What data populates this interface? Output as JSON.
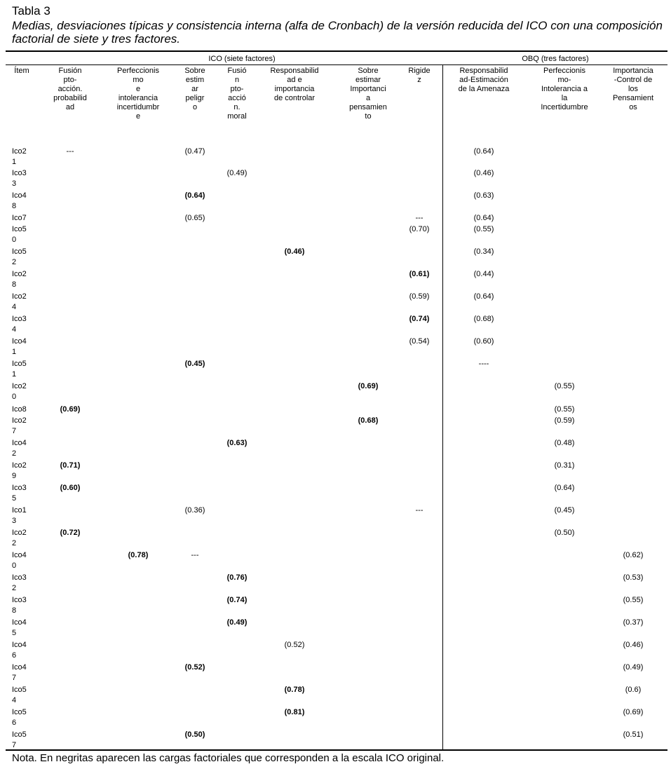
{
  "caption": {
    "title": "Tabla 3",
    "subtitle": "Medias, desviaciones típicas y consistencia interna (alfa de Cronbach) de la versión reducida del ICO con una composición factorial de siete y tres factores."
  },
  "groups": {
    "ico": "ICO (siete factores)",
    "obq": "OBQ (tres factores)"
  },
  "headers": [
    "Ítem",
    "Fusión\npto-\nacción.\nprobabilid\nad",
    "Perfeccionis\nmo\ne\nintolerancia\nincertidumbr\ne",
    "Sobre\nestim\nar\npeligr\no",
    "Fusió\nn\npto-\nacció\nn.\nmoral",
    "Responsabilid\nad e\nimportancia\nde controlar",
    "Sobre\nestimar\nImportanci\na\npensamien\nto",
    "Rigide\nz",
    "Responsabilid\nad-Estimación\nde la Amenaza",
    "Perfeccionis\nmo-\nIntolerancia a\nla\nIncertidumbre",
    "Importancia\n-Control de\nlos\nPensamient\nos"
  ],
  "rows": [
    {
      "item": "Ico2\n1",
      "cells": [
        "---",
        "",
        "(0.47)",
        "",
        "",
        "",
        "",
        "(0.64)",
        "",
        ""
      ],
      "bold": [
        false,
        false,
        false,
        false,
        false,
        false,
        false,
        false,
        false,
        false
      ]
    },
    {
      "item": "Ico3\n3",
      "cells": [
        "",
        "",
        "",
        "(0.49)",
        "",
        "",
        "",
        "(0.46)",
        "",
        ""
      ],
      "bold": [
        false,
        false,
        false,
        false,
        false,
        false,
        false,
        false,
        false,
        false
      ]
    },
    {
      "item": "Ico4\n8",
      "cells": [
        "",
        "",
        "(0.64)",
        "",
        "",
        "",
        "",
        "(0.63)",
        "",
        ""
      ],
      "bold": [
        false,
        false,
        true,
        false,
        false,
        false,
        false,
        false,
        false,
        false
      ]
    },
    {
      "item": "Ico7",
      "cells": [
        "",
        "",
        "(0.65)",
        "",
        "",
        "",
        "---",
        "(0.64)",
        "",
        ""
      ],
      "bold": [
        false,
        false,
        false,
        false,
        false,
        false,
        false,
        false,
        false,
        false
      ]
    },
    {
      "item": "Ico5\n0",
      "cells": [
        "",
        "",
        "",
        "",
        "",
        "",
        "(0.70)",
        "(0.55)",
        "",
        ""
      ],
      "bold": [
        false,
        false,
        false,
        false,
        false,
        false,
        false,
        false,
        false,
        false
      ]
    },
    {
      "item": "Ico5\n2",
      "cells": [
        "",
        "",
        "",
        "",
        "(0.46)",
        "",
        "",
        "(0.34)",
        "",
        ""
      ],
      "bold": [
        false,
        false,
        false,
        false,
        true,
        false,
        false,
        false,
        false,
        false
      ]
    },
    {
      "item": "Ico2\n8",
      "cells": [
        "",
        "",
        "",
        "",
        "",
        "",
        "(0.61)",
        "(0.44)",
        "",
        ""
      ],
      "bold": [
        false,
        false,
        false,
        false,
        false,
        false,
        true,
        false,
        false,
        false
      ]
    },
    {
      "item": "Ico2\n4",
      "cells": [
        "",
        "",
        "",
        "",
        "",
        "",
        "(0.59)",
        "(0.64)",
        "",
        ""
      ],
      "bold": [
        false,
        false,
        false,
        false,
        false,
        false,
        false,
        false,
        false,
        false
      ]
    },
    {
      "item": "Ico3\n4",
      "cells": [
        "",
        "",
        "",
        "",
        "",
        "",
        "(0.74)",
        "(0.68)",
        "",
        ""
      ],
      "bold": [
        false,
        false,
        false,
        false,
        false,
        false,
        true,
        false,
        false,
        false
      ]
    },
    {
      "item": "Ico4\n1",
      "cells": [
        "",
        "",
        "",
        "",
        "",
        "",
        "(0.54)",
        "(0.60)",
        "",
        ""
      ],
      "bold": [
        false,
        false,
        false,
        false,
        false,
        false,
        false,
        false,
        false,
        false
      ]
    },
    {
      "item": "Ico5\n1",
      "cells": [
        "",
        "",
        "(0.45)",
        "",
        "",
        "",
        "",
        "----",
        "",
        ""
      ],
      "bold": [
        false,
        false,
        true,
        false,
        false,
        false,
        false,
        false,
        false,
        false
      ]
    },
    {
      "item": "Ico2\n0",
      "cells": [
        "",
        "",
        "",
        "",
        "",
        "(0.69)",
        "",
        "",
        "(0.55)",
        ""
      ],
      "bold": [
        false,
        false,
        false,
        false,
        false,
        true,
        false,
        false,
        false,
        false
      ]
    },
    {
      "item": "Ico8",
      "cells": [
        "(0.69)",
        "",
        "",
        "",
        "",
        "",
        "",
        "",
        "(0.55)",
        ""
      ],
      "bold": [
        true,
        false,
        false,
        false,
        false,
        false,
        false,
        false,
        false,
        false
      ]
    },
    {
      "item": "Ico2\n7",
      "cells": [
        "",
        "",
        "",
        "",
        "",
        "(0.68)",
        "",
        "",
        "(0.59)",
        ""
      ],
      "bold": [
        false,
        false,
        false,
        false,
        false,
        true,
        false,
        false,
        false,
        false
      ]
    },
    {
      "item": "Ico4\n2",
      "cells": [
        "",
        "",
        "",
        "(0.63)",
        "",
        "",
        "",
        "",
        "(0.48)",
        ""
      ],
      "bold": [
        false,
        false,
        false,
        true,
        false,
        false,
        false,
        false,
        false,
        false
      ]
    },
    {
      "item": "Ico2\n9",
      "cells": [
        "(0.71)",
        "",
        "",
        "",
        "",
        "",
        "",
        "",
        "(0.31)",
        ""
      ],
      "bold": [
        true,
        false,
        false,
        false,
        false,
        false,
        false,
        false,
        false,
        false
      ]
    },
    {
      "item": "Ico3\n5",
      "cells": [
        "(0.60)",
        "",
        "",
        "",
        "",
        "",
        "",
        "",
        "(0.64)",
        ""
      ],
      "bold": [
        true,
        false,
        false,
        false,
        false,
        false,
        false,
        false,
        false,
        false
      ]
    },
    {
      "item": "Ico1\n3",
      "cells": [
        "",
        "",
        "(0.36)",
        "",
        "",
        "",
        "---",
        "",
        "(0.45)",
        ""
      ],
      "bold": [
        false,
        false,
        false,
        false,
        false,
        false,
        false,
        false,
        false,
        false
      ]
    },
    {
      "item": "Ico2\n2",
      "cells": [
        "(0.72)",
        "",
        "",
        "",
        "",
        "",
        "",
        "",
        "(0.50)",
        ""
      ],
      "bold": [
        true,
        false,
        false,
        false,
        false,
        false,
        false,
        false,
        false,
        false
      ]
    },
    {
      "item": "Ico4\n0",
      "cells": [
        "",
        "(0.78)",
        "---",
        "",
        "",
        "",
        "",
        "",
        "",
        "(0.62)"
      ],
      "bold": [
        false,
        true,
        false,
        false,
        false,
        false,
        false,
        false,
        false,
        false
      ]
    },
    {
      "item": "Ico3\n2",
      "cells": [
        "",
        "",
        "",
        "(0.76)",
        "",
        "",
        "",
        "",
        "",
        "(0.53)"
      ],
      "bold": [
        false,
        false,
        false,
        true,
        false,
        false,
        false,
        false,
        false,
        false
      ]
    },
    {
      "item": "Ico3\n8",
      "cells": [
        "",
        "",
        "",
        "(0.74)",
        "",
        "",
        "",
        "",
        "",
        "(0.55)"
      ],
      "bold": [
        false,
        false,
        false,
        true,
        false,
        false,
        false,
        false,
        false,
        false
      ]
    },
    {
      "item": "Ico4\n5",
      "cells": [
        "",
        "",
        "",
        "(0.49)",
        "",
        "",
        "",
        "",
        "",
        "(0.37)"
      ],
      "bold": [
        false,
        false,
        false,
        true,
        false,
        false,
        false,
        false,
        false,
        false
      ]
    },
    {
      "item": "Ico4\n6",
      "cells": [
        "",
        "",
        "",
        "",
        "(0.52)",
        "",
        "",
        "",
        "",
        "(0.46)"
      ],
      "bold": [
        false,
        false,
        false,
        false,
        false,
        false,
        false,
        false,
        false,
        false
      ]
    },
    {
      "item": "Ico4\n7",
      "cells": [
        "",
        "",
        "(0.52)",
        "",
        "",
        "",
        "",
        "",
        "",
        "(0.49)"
      ],
      "bold": [
        false,
        false,
        true,
        false,
        false,
        false,
        false,
        false,
        false,
        false
      ]
    },
    {
      "item": "Ico5\n4",
      "cells": [
        "",
        "",
        "",
        "",
        "(0.78)",
        "",
        "",
        "",
        "",
        "(0.6)"
      ],
      "bold": [
        false,
        false,
        false,
        false,
        true,
        false,
        false,
        false,
        false,
        false
      ]
    },
    {
      "item": "Ico5\n6",
      "cells": [
        "",
        "",
        "",
        "",
        "(0.81)",
        "",
        "",
        "",
        "",
        "(0.69)"
      ],
      "bold": [
        false,
        false,
        false,
        false,
        true,
        false,
        false,
        false,
        false,
        false
      ]
    },
    {
      "item": "Ico5\n7",
      "cells": [
        "",
        "",
        "(0.50)",
        "",
        "",
        "",
        "",
        "",
        "",
        "(0.51)"
      ],
      "bold": [
        false,
        false,
        true,
        false,
        false,
        false,
        false,
        false,
        false,
        false
      ]
    }
  ],
  "note": "Nota. En negritas aparecen las cargas factoriales que corresponden a la escala ICO original."
}
